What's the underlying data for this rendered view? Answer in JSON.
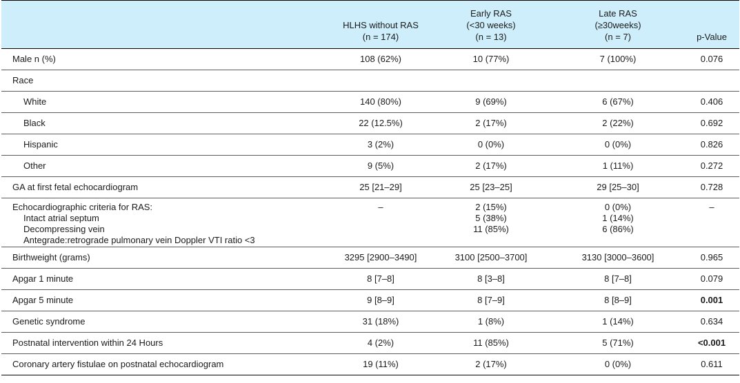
{
  "header": {
    "col1": [
      "HLHS without RAS",
      "(n = 174)"
    ],
    "col2": [
      "Early RAS",
      "(<30 weeks)",
      "(n = 13)"
    ],
    "col3": [
      "Late RAS",
      "(≥30weeks)",
      "(n = 7)"
    ],
    "col4": "p-Value"
  },
  "rows": [
    {
      "label": "Male n (%)",
      "c1": "108 (62%)",
      "c2": "10 (77%)",
      "c3": "7 (100%)",
      "p": "0.076"
    },
    {
      "label": "Race",
      "c1": "",
      "c2": "",
      "c3": "",
      "p": ""
    },
    {
      "label": "White",
      "c1": "140 (80%)",
      "c2": "9 (69%)",
      "c3": "6 (67%)",
      "p": "0.406"
    },
    {
      "label": "Black",
      "c1": "22 (12.5%)",
      "c2": "2 (17%)",
      "c3": "2 (22%)",
      "p": "0.692"
    },
    {
      "label": "Hispanic",
      "c1": "3 (2%)",
      "c2": "0 (0%)",
      "c3": "0 (0%)",
      "p": "0.826"
    },
    {
      "label": "Other",
      "c1": "9 (5%)",
      "c2": "2 (17%)",
      "c3": "1 (11%)",
      "p": "0.272"
    },
    {
      "label": "GA at first fetal echocardiogram",
      "c1": "25 [21–29]",
      "c2": "25 [23–25]",
      "c3": "29 [25–30]",
      "p": "0.728"
    },
    {
      "label": [
        "Echocardiographic criteria for RAS:",
        "Intact atrial septum",
        "Decompressing vein",
        "Antegrade:retrograde pulmonary vein Doppler VTI ratio <3"
      ],
      "c1": "–",
      "c2": [
        "2 (15%)",
        "5 (38%)",
        "11 (85%)"
      ],
      "c3": [
        "0 (0%)",
        "1 (14%)",
        "6 (86%)"
      ],
      "p": "–"
    },
    {
      "label": "Birthweight (grams)",
      "c1": "3295 [2900–3490]",
      "c2": "3100 [2500–3700]",
      "c3": "3130 [3000–3600]",
      "p": "0.965"
    },
    {
      "label": "Apgar 1 minute",
      "c1": "8 [7–8]",
      "c2": "8 [3–8]",
      "c3": "8 [7–8]",
      "p": "0.079"
    },
    {
      "label": "Apgar 5 minute",
      "c1": "9 [8–9]",
      "c2": "8 [7–9]",
      "c3": "8 [8–9]",
      "p": "0.001"
    },
    {
      "label": "Genetic syndrome",
      "c1": "31 (18%)",
      "c2": "1 (8%)",
      "c3": "1 (14%)",
      "p": "0.634"
    },
    {
      "label": "Postnatal intervention within 24 Hours",
      "c1": "4 (2%)",
      "c2": "11 (85%)",
      "c3": "5 (71%)",
      "p": "<0.001"
    },
    {
      "label": "Coronary artery fistulae on postnatal echocardiogram",
      "c1": "19 (11%)",
      "c2": "2 (17%)",
      "c3": "0 (0%)",
      "p": "0.611"
    }
  ]
}
